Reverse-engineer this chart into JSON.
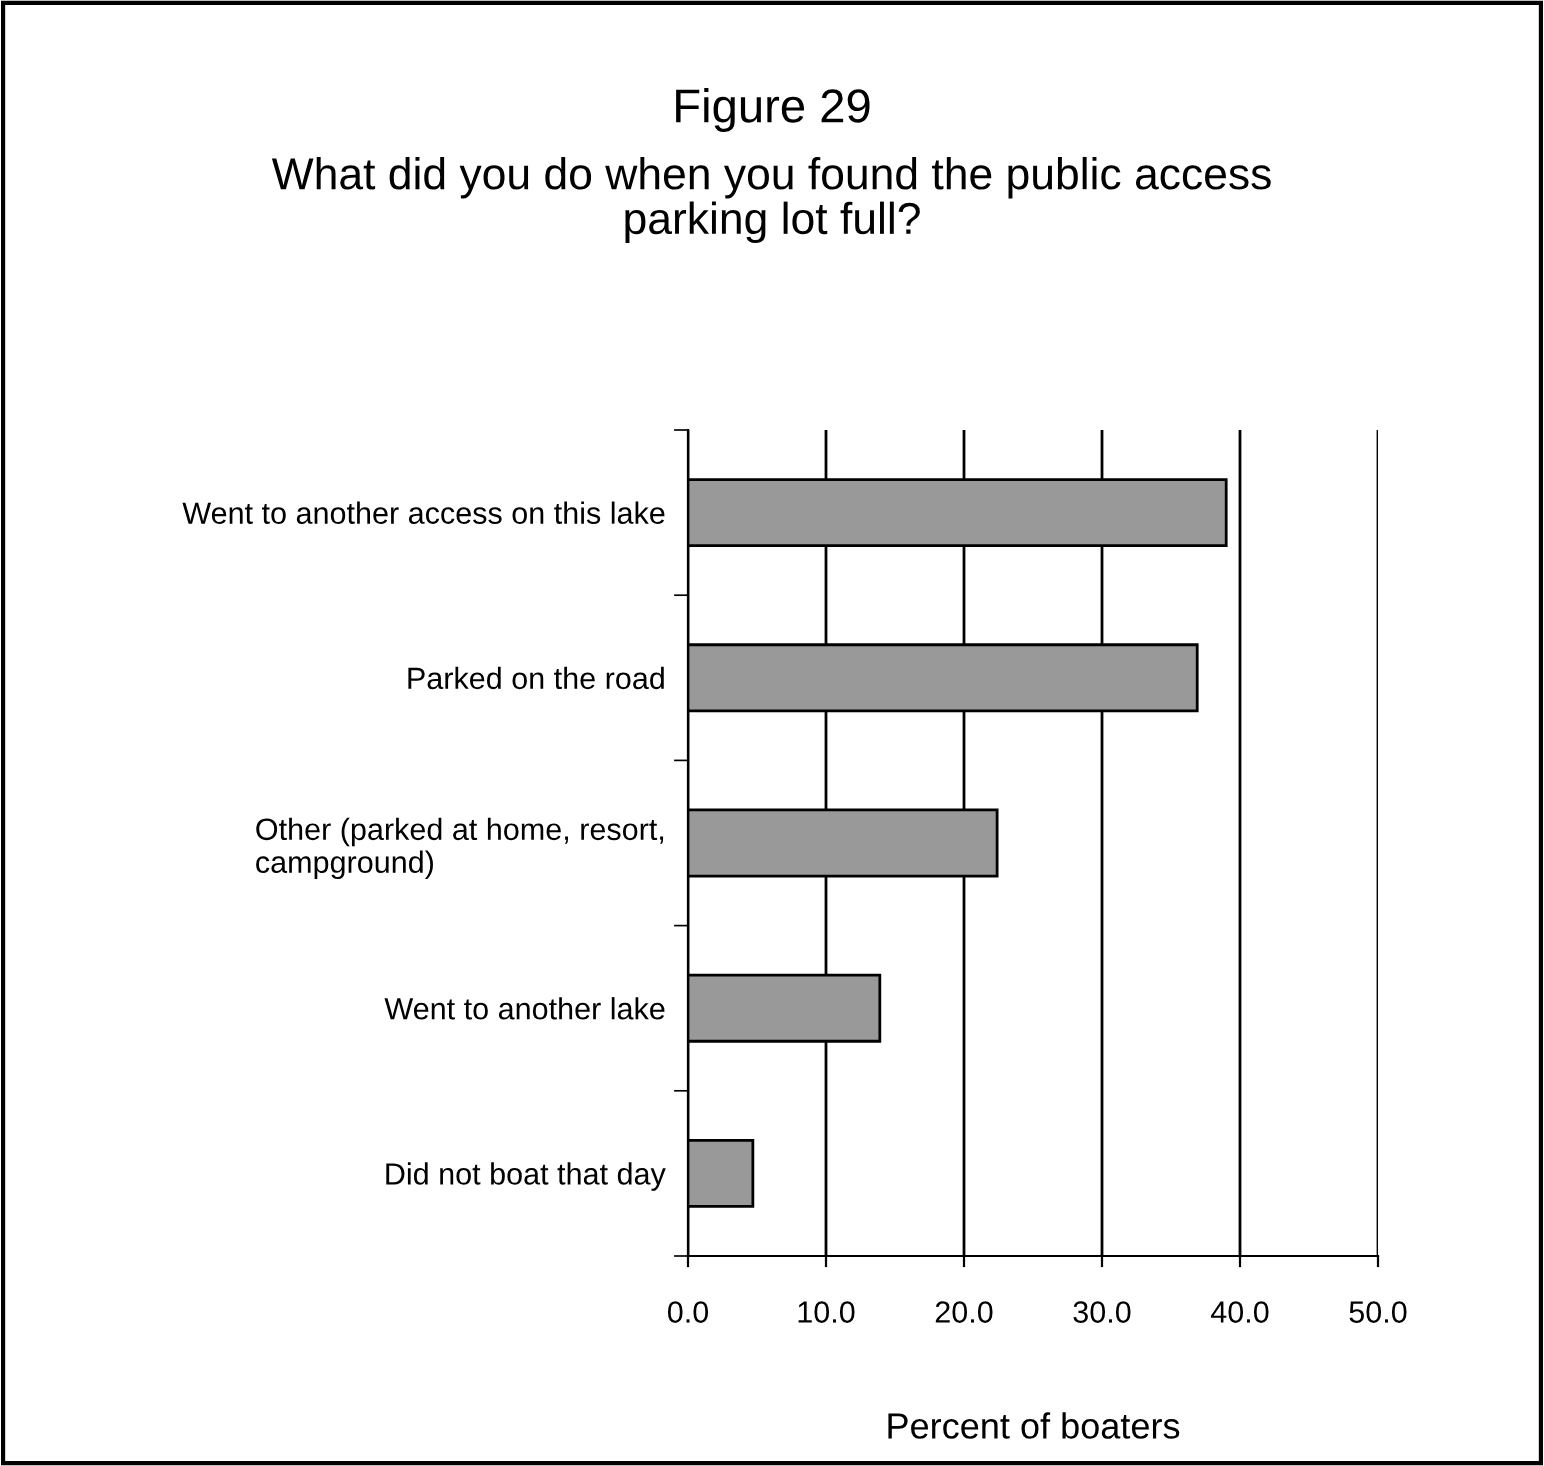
{
  "chart_data": {
    "type": "bar",
    "orientation": "horizontal",
    "title": "Figure 29",
    "subtitle": "What did you do when you found the public access\nparking lot full?",
    "xlabel": "Percent of boaters",
    "categories": [
      "Went to another access on this lake",
      "Parked on the road",
      "Other (parked at home, resort,\ncampground)",
      "Went to another lake",
      "Did not boat that day"
    ],
    "values": [
      39.0,
      36.9,
      22.4,
      13.9,
      4.7
    ],
    "color": "#999999",
    "xlim": [
      0,
      50
    ],
    "xticks": [
      {
        "value": 0,
        "label": "0.0"
      },
      {
        "value": 10,
        "label": "10.0"
      },
      {
        "value": 20,
        "label": "20.0"
      },
      {
        "value": 30,
        "label": "30.0"
      },
      {
        "value": 40,
        "label": "40.0"
      },
      {
        "value": 50,
        "label": "50.0"
      }
    ],
    "grid": "x"
  }
}
